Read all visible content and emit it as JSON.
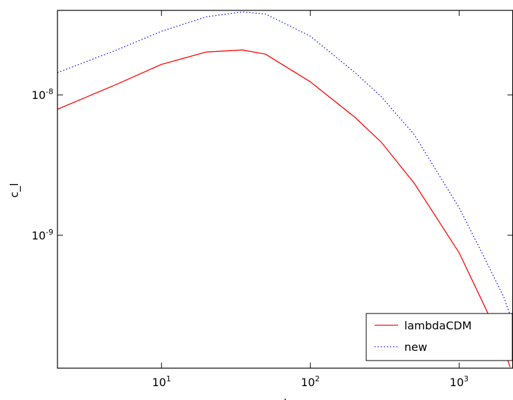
{
  "chart_data": {
    "type": "line",
    "xlabel": "l",
    "ylabel": "c_l",
    "xscale": "log",
    "yscale": "log",
    "grid": false,
    "legend": "lower right",
    "xlim": [
      2,
      2300
    ],
    "ylim": [
      1.13e-10,
      4e-08
    ],
    "xticks": [
      {
        "value": 10,
        "label": "10^1"
      },
      {
        "value": 100,
        "label": "10^2"
      },
      {
        "value": 1000,
        "label": "10^3"
      }
    ],
    "yticks": [
      {
        "value": 1e-09,
        "label": "10^-9"
      },
      {
        "value": 1e-08,
        "label": "10^-8"
      }
    ],
    "x": [
      2,
      5,
      10,
      20,
      35,
      50,
      100,
      200,
      300,
      500,
      1000,
      1500,
      2000,
      2200
    ],
    "series": [
      {
        "name": "lambdaCDM",
        "color": "#ff0000",
        "style": "solid",
        "values": [
          7.9e-09,
          1.19e-08,
          1.65e-08,
          2.02e-08,
          2.09e-08,
          1.95e-08,
          1.24e-08,
          6.9e-09,
          4.6e-09,
          2.34e-09,
          7.5e-10,
          3.04e-10,
          1.54e-10,
          1.15e-10
        ]
      },
      {
        "name": "new",
        "color": "#0000ff",
        "style": "dotted",
        "values": [
          1.44e-08,
          2.09e-08,
          2.84e-08,
          3.6e-08,
          3.9e-08,
          3.77e-08,
          2.62e-08,
          1.44e-08,
          9.7e-09,
          5.2e-09,
          1.57e-09,
          6.7e-10,
          3.6e-10,
          2.7e-10
        ]
      }
    ]
  }
}
